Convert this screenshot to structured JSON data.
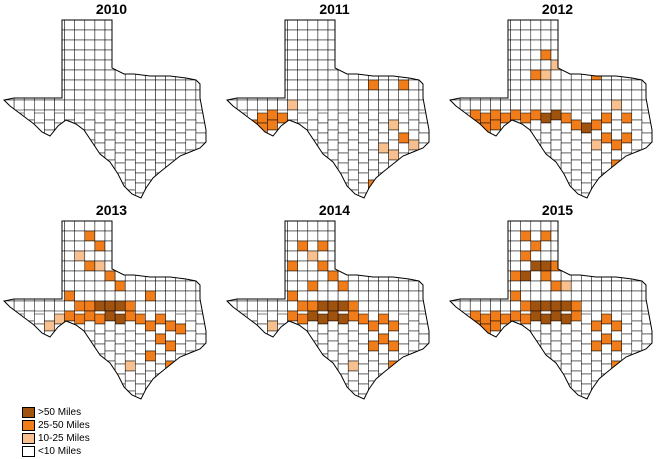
{
  "panels": [
    {
      "year": "2010",
      "counties": []
    },
    {
      "year": "2011",
      "counties": [
        {
          "col": 3,
          "row": 9,
          "cat": "c2"
        },
        {
          "col": 4,
          "row": 9,
          "cat": "c2"
        },
        {
          "col": 5,
          "row": 9,
          "cat": "c2"
        },
        {
          "col": 2,
          "row": 10,
          "cat": "c2"
        },
        {
          "col": 3,
          "row": 10,
          "cat": "c2"
        },
        {
          "col": 4,
          "row": 10,
          "cat": "c2"
        },
        {
          "col": 2,
          "row": 11,
          "cat": "c1"
        },
        {
          "col": 3,
          "row": 11,
          "cat": "c2"
        },
        {
          "col": 6,
          "row": 8,
          "cat": "c1"
        },
        {
          "col": 14,
          "row": 6,
          "cat": "c2"
        },
        {
          "col": 17,
          "row": 6,
          "cat": "c2"
        },
        {
          "col": 16,
          "row": 10,
          "cat": "c1"
        },
        {
          "col": 17,
          "row": 11,
          "cat": "c2"
        },
        {
          "col": 15,
          "row": 12,
          "cat": "c1"
        },
        {
          "col": 18,
          "row": 12,
          "cat": "c1"
        },
        {
          "col": 16,
          "row": 13,
          "cat": "c1"
        },
        {
          "col": 14,
          "row": 16,
          "cat": "c2"
        }
      ]
    },
    {
      "year": "2012",
      "counties": [
        {
          "col": 11,
          "row": 2,
          "cat": "c2"
        },
        {
          "col": 9,
          "row": 3,
          "cat": "c2"
        },
        {
          "col": 10,
          "row": 4,
          "cat": "c1"
        },
        {
          "col": 8,
          "row": 5,
          "cat": "c2"
        },
        {
          "col": 9,
          "row": 5,
          "cat": "c1"
        },
        {
          "col": 14,
          "row": 5,
          "cat": "c2"
        },
        {
          "col": 2,
          "row": 9,
          "cat": "c2"
        },
        {
          "col": 3,
          "row": 9,
          "cat": "c2"
        },
        {
          "col": 4,
          "row": 9,
          "cat": "c2"
        },
        {
          "col": 5,
          "row": 9,
          "cat": "c2"
        },
        {
          "col": 6,
          "row": 9,
          "cat": "c2"
        },
        {
          "col": 7,
          "row": 9,
          "cat": "c2"
        },
        {
          "col": 8,
          "row": 9,
          "cat": "c2"
        },
        {
          "col": 9,
          "row": 9,
          "cat": "c3"
        },
        {
          "col": 10,
          "row": 9,
          "cat": "c3"
        },
        {
          "col": 11,
          "row": 9,
          "cat": "c2"
        },
        {
          "col": 2,
          "row": 10,
          "cat": "c2"
        },
        {
          "col": 3,
          "row": 10,
          "cat": "c2"
        },
        {
          "col": 4,
          "row": 10,
          "cat": "c2"
        },
        {
          "col": 12,
          "row": 10,
          "cat": "c2"
        },
        {
          "col": 13,
          "row": 10,
          "cat": "c3"
        },
        {
          "col": 14,
          "row": 10,
          "cat": "c2"
        },
        {
          "col": 15,
          "row": 9,
          "cat": "c2"
        },
        {
          "col": 16,
          "row": 8,
          "cat": "c1"
        },
        {
          "col": 17,
          "row": 9,
          "cat": "c2"
        },
        {
          "col": 2,
          "row": 11,
          "cat": "c1"
        },
        {
          "col": 3,
          "row": 11,
          "cat": "c2"
        },
        {
          "col": 15,
          "row": 11,
          "cat": "c2"
        },
        {
          "col": 16,
          "row": 12,
          "cat": "c2"
        },
        {
          "col": 17,
          "row": 11,
          "cat": "c2"
        },
        {
          "col": 14,
          "row": 12,
          "cat": "c1"
        },
        {
          "col": 16,
          "row": 14,
          "cat": "c2"
        },
        {
          "col": 15,
          "row": 15,
          "cat": "c1"
        },
        {
          "col": 14,
          "row": 17,
          "cat": "c2"
        }
      ]
    },
    {
      "year": "2013",
      "counties": [
        {
          "col": 8,
          "row": 1,
          "cat": "c2"
        },
        {
          "col": 9,
          "row": 2,
          "cat": "c2"
        },
        {
          "col": 7,
          "row": 3,
          "cat": "c1"
        },
        {
          "col": 8,
          "row": 4,
          "cat": "c2"
        },
        {
          "col": 9,
          "row": 4,
          "cat": "c1"
        },
        {
          "col": 10,
          "row": 5,
          "cat": "c2"
        },
        {
          "col": 11,
          "row": 6,
          "cat": "c2"
        },
        {
          "col": 6,
          "row": 7,
          "cat": "c2"
        },
        {
          "col": 14,
          "row": 7,
          "cat": "c2"
        },
        {
          "col": 7,
          "row": 8,
          "cat": "c2"
        },
        {
          "col": 8,
          "row": 8,
          "cat": "c2"
        },
        {
          "col": 9,
          "row": 8,
          "cat": "c3"
        },
        {
          "col": 10,
          "row": 8,
          "cat": "c3"
        },
        {
          "col": 11,
          "row": 8,
          "cat": "c3"
        },
        {
          "col": 12,
          "row": 8,
          "cat": "c2"
        },
        {
          "col": 5,
          "row": 9,
          "cat": "c1"
        },
        {
          "col": 6,
          "row": 9,
          "cat": "c2"
        },
        {
          "col": 7,
          "row": 9,
          "cat": "c2"
        },
        {
          "col": 8,
          "row": 9,
          "cat": "c2"
        },
        {
          "col": 9,
          "row": 9,
          "cat": "c2"
        },
        {
          "col": 10,
          "row": 9,
          "cat": "c3"
        },
        {
          "col": 11,
          "row": 9,
          "cat": "c3"
        },
        {
          "col": 12,
          "row": 9,
          "cat": "c2"
        },
        {
          "col": 4,
          "row": 10,
          "cat": "c1"
        },
        {
          "col": 13,
          "row": 9,
          "cat": "c2"
        },
        {
          "col": 14,
          "row": 10,
          "cat": "c2"
        },
        {
          "col": 15,
          "row": 9,
          "cat": "c2"
        },
        {
          "col": 16,
          "row": 10,
          "cat": "c2"
        },
        {
          "col": 17,
          "row": 10,
          "cat": "c2"
        },
        {
          "col": 15,
          "row": 11,
          "cat": "c2"
        },
        {
          "col": 16,
          "row": 12,
          "cat": "c2"
        },
        {
          "col": 14,
          "row": 13,
          "cat": "c2"
        },
        {
          "col": 8,
          "row": 13,
          "cat": "c2"
        },
        {
          "col": 12,
          "row": 14,
          "cat": "c1"
        },
        {
          "col": 16,
          "row": 14,
          "cat": "c2"
        },
        {
          "col": 14,
          "row": 17,
          "cat": "c2"
        }
      ]
    },
    {
      "year": "2014",
      "counties": [
        {
          "col": 7,
          "row": 2,
          "cat": "c2"
        },
        {
          "col": 9,
          "row": 2,
          "cat": "c2"
        },
        {
          "col": 8,
          "row": 3,
          "cat": "c1"
        },
        {
          "col": 6,
          "row": 4,
          "cat": "c2"
        },
        {
          "col": 9,
          "row": 4,
          "cat": "c2"
        },
        {
          "col": 10,
          "row": 5,
          "cat": "c2"
        },
        {
          "col": 8,
          "row": 6,
          "cat": "c2"
        },
        {
          "col": 11,
          "row": 6,
          "cat": "c2"
        },
        {
          "col": 6,
          "row": 7,
          "cat": "c2"
        },
        {
          "col": 7,
          "row": 8,
          "cat": "c2"
        },
        {
          "col": 8,
          "row": 8,
          "cat": "c2"
        },
        {
          "col": 9,
          "row": 8,
          "cat": "c3"
        },
        {
          "col": 10,
          "row": 8,
          "cat": "c3"
        },
        {
          "col": 11,
          "row": 8,
          "cat": "c3"
        },
        {
          "col": 12,
          "row": 8,
          "cat": "c2"
        },
        {
          "col": 6,
          "row": 9,
          "cat": "c2"
        },
        {
          "col": 7,
          "row": 9,
          "cat": "c2"
        },
        {
          "col": 8,
          "row": 9,
          "cat": "c3"
        },
        {
          "col": 9,
          "row": 9,
          "cat": "c3"
        },
        {
          "col": 10,
          "row": 9,
          "cat": "c3"
        },
        {
          "col": 11,
          "row": 9,
          "cat": "c3"
        },
        {
          "col": 12,
          "row": 9,
          "cat": "c2"
        },
        {
          "col": 4,
          "row": 10,
          "cat": "c1"
        },
        {
          "col": 13,
          "row": 9,
          "cat": "c2"
        },
        {
          "col": 14,
          "row": 10,
          "cat": "c2"
        },
        {
          "col": 15,
          "row": 9,
          "cat": "c2"
        },
        {
          "col": 16,
          "row": 10,
          "cat": "c2"
        },
        {
          "col": 15,
          "row": 11,
          "cat": "c2"
        },
        {
          "col": 16,
          "row": 12,
          "cat": "c2"
        },
        {
          "col": 14,
          "row": 12,
          "cat": "c2"
        },
        {
          "col": 8,
          "row": 13,
          "cat": "c2"
        },
        {
          "col": 12,
          "row": 14,
          "cat": "c1"
        },
        {
          "col": 16,
          "row": 14,
          "cat": "c2"
        },
        {
          "col": 14,
          "row": 17,
          "cat": "c2"
        }
      ]
    },
    {
      "year": "2015",
      "counties": [
        {
          "col": 7,
          "row": 1,
          "cat": "c2"
        },
        {
          "col": 9,
          "row": 1,
          "cat": "c2"
        },
        {
          "col": 8,
          "row": 2,
          "cat": "c2"
        },
        {
          "col": 7,
          "row": 3,
          "cat": "c2"
        },
        {
          "col": 8,
          "row": 4,
          "cat": "c3"
        },
        {
          "col": 9,
          "row": 4,
          "cat": "c3"
        },
        {
          "col": 10,
          "row": 4,
          "cat": "c2"
        },
        {
          "col": 6,
          "row": 5,
          "cat": "c2"
        },
        {
          "col": 7,
          "row": 5,
          "cat": "c3"
        },
        {
          "col": 9,
          "row": 5,
          "cat": "c2"
        },
        {
          "col": 10,
          "row": 6,
          "cat": "c2"
        },
        {
          "col": 11,
          "row": 6,
          "cat": "c1"
        },
        {
          "col": 6,
          "row": 7,
          "cat": "c2"
        },
        {
          "col": 7,
          "row": 8,
          "cat": "c2"
        },
        {
          "col": 8,
          "row": 8,
          "cat": "c3"
        },
        {
          "col": 9,
          "row": 8,
          "cat": "c3"
        },
        {
          "col": 10,
          "row": 8,
          "cat": "c3"
        },
        {
          "col": 11,
          "row": 8,
          "cat": "c3"
        },
        {
          "col": 12,
          "row": 8,
          "cat": "c2"
        },
        {
          "col": 2,
          "row": 9,
          "cat": "c2"
        },
        {
          "col": 3,
          "row": 9,
          "cat": "c2"
        },
        {
          "col": 4,
          "row": 9,
          "cat": "c2"
        },
        {
          "col": 5,
          "row": 9,
          "cat": "c2"
        },
        {
          "col": 6,
          "row": 9,
          "cat": "c2"
        },
        {
          "col": 7,
          "row": 9,
          "cat": "c2"
        },
        {
          "col": 8,
          "row": 9,
          "cat": "c3"
        },
        {
          "col": 9,
          "row": 9,
          "cat": "c3"
        },
        {
          "col": 10,
          "row": 9,
          "cat": "c3"
        },
        {
          "col": 11,
          "row": 9,
          "cat": "c3"
        },
        {
          "col": 12,
          "row": 9,
          "cat": "c2"
        },
        {
          "col": 2,
          "row": 10,
          "cat": "c2"
        },
        {
          "col": 3,
          "row": 10,
          "cat": "c2"
        },
        {
          "col": 4,
          "row": 10,
          "cat": "c2"
        },
        {
          "col": 14,
          "row": 10,
          "cat": "c2"
        },
        {
          "col": 15,
          "row": 9,
          "cat": "c2"
        },
        {
          "col": 16,
          "row": 10,
          "cat": "c2"
        },
        {
          "col": 15,
          "row": 11,
          "cat": "c2"
        },
        {
          "col": 16,
          "row": 12,
          "cat": "c2"
        },
        {
          "col": 14,
          "row": 12,
          "cat": "c2"
        },
        {
          "col": 16,
          "row": 14,
          "cat": "c2"
        },
        {
          "col": 14,
          "row": 17,
          "cat": "c1"
        }
      ]
    }
  ],
  "legend": [
    {
      "label": ">50 Miles",
      "color": "#a0520f"
    },
    {
      "label": "25-50 Miles",
      "color": "#f07d1a"
    },
    {
      "label": "10-25 Miles",
      "color": "#f8c08e"
    },
    {
      "label": "<10 Miles",
      "color": "#ffffff"
    }
  ],
  "category_colors": {
    "c3": "#a0520f",
    "c2": "#f07d1a",
    "c1": "#f8c08e",
    "c0": "#ffffff"
  }
}
